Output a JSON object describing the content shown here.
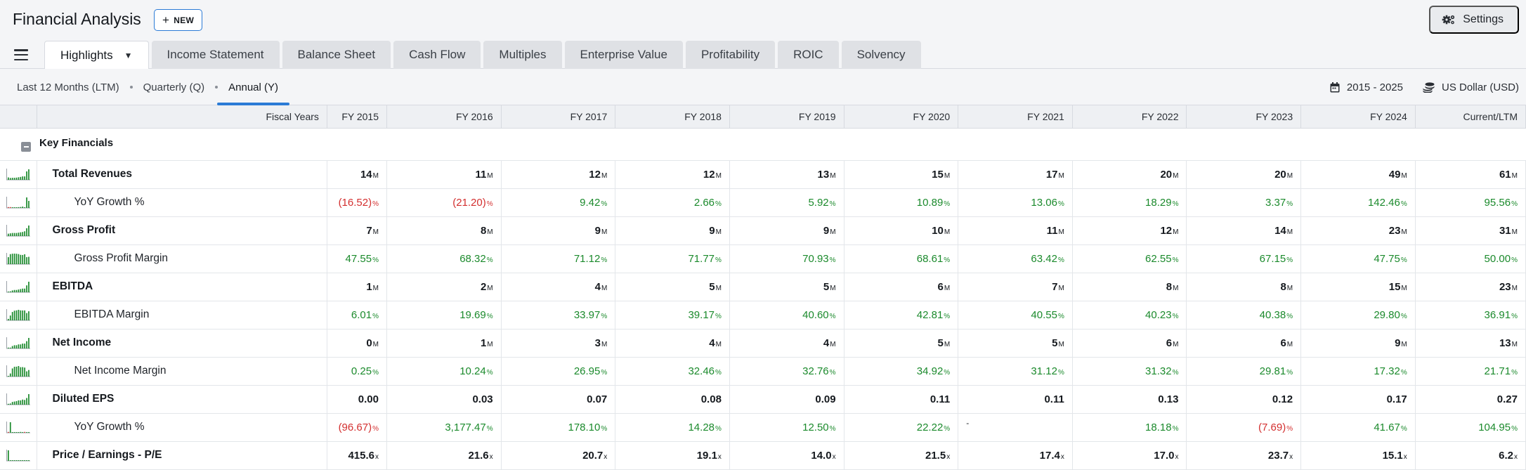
{
  "app": {
    "title": "Financial Analysis",
    "new_label": "NEW",
    "settings_label": "Settings"
  },
  "tabs": [
    "Highlights",
    "Income Statement",
    "Balance Sheet",
    "Cash Flow",
    "Multiples",
    "Enterprise Value",
    "Profitability",
    "ROIC",
    "Solvency"
  ],
  "periods": [
    "Last 12 Months (LTM)",
    "Quarterly (Q)",
    "Annual (Y)"
  ],
  "active_period": "Annual (Y)",
  "range_label": "2015 - 2025",
  "currency_label": "US Dollar (USD)",
  "colors": {
    "accent": "#2b7bd6",
    "positive": "#1b8a2c",
    "negative": "#d32f2f"
  },
  "table": {
    "header_label": "Fiscal Years",
    "columns": [
      "FY 2015",
      "FY 2016",
      "FY 2017",
      "FY 2018",
      "FY 2019",
      "FY 2020",
      "FY 2021",
      "FY 2022",
      "FY 2023",
      "FY 2024",
      "Current/LTM"
    ],
    "section": "Key Financials",
    "rows": [
      {
        "label": "Total Revenues",
        "sub": false,
        "unit": "M",
        "values": [
          "14",
          "11",
          "12",
          "12",
          "13",
          "15",
          "17",
          "20",
          "20",
          "49",
          "61"
        ],
        "spark": [
          14,
          11,
          12,
          12,
          13,
          15,
          17,
          20,
          20,
          49,
          61
        ]
      },
      {
        "label": "YoY Growth %",
        "sub": true,
        "unit": "%",
        "values": [
          "(16.52)",
          "(21.20)",
          "9.42",
          "2.66",
          "5.92",
          "10.89",
          "13.06",
          "18.29",
          "3.37",
          "142.46",
          "95.56"
        ],
        "spark": [
          -16.52,
          -21.2,
          9.42,
          2.66,
          5.92,
          10.89,
          13.06,
          18.29,
          3.37,
          142.46,
          95.56
        ]
      },
      {
        "label": "Gross Profit",
        "sub": false,
        "unit": "M",
        "values": [
          "7",
          "8",
          "9",
          "9",
          "9",
          "10",
          "11",
          "12",
          "14",
          "23",
          "31"
        ],
        "spark": [
          7,
          8,
          9,
          9,
          9,
          10,
          11,
          12,
          14,
          23,
          31
        ]
      },
      {
        "label": "Gross Profit Margin",
        "sub": true,
        "unit": "%",
        "values": [
          "47.55",
          "68.32",
          "71.12",
          "71.77",
          "70.93",
          "68.61",
          "63.42",
          "62.55",
          "67.15",
          "47.75",
          "50.00"
        ],
        "spark": [
          47.55,
          68.32,
          71.12,
          71.77,
          70.93,
          68.61,
          63.42,
          62.55,
          67.15,
          47.75,
          50
        ]
      },
      {
        "label": "EBITDA",
        "sub": false,
        "unit": "M",
        "values": [
          "1",
          "2",
          "4",
          "5",
          "5",
          "6",
          "7",
          "8",
          "8",
          "15",
          "23"
        ],
        "spark": [
          1,
          2,
          4,
          5,
          5,
          6,
          7,
          8,
          8,
          15,
          23
        ]
      },
      {
        "label": "EBITDA Margin",
        "sub": true,
        "unit": "%",
        "values": [
          "6.01",
          "19.69",
          "33.97",
          "39.17",
          "40.60",
          "42.81",
          "40.55",
          "40.23",
          "40.38",
          "29.80",
          "36.91"
        ],
        "spark": [
          6.01,
          19.69,
          33.97,
          39.17,
          40.6,
          42.81,
          40.55,
          40.23,
          40.38,
          29.8,
          36.91
        ]
      },
      {
        "label": "Net Income",
        "sub": false,
        "unit": "M",
        "values": [
          "0",
          "1",
          "3",
          "4",
          "4",
          "5",
          "5",
          "6",
          "6",
          "9",
          "13"
        ],
        "spark": [
          0,
          1,
          3,
          4,
          4,
          5,
          5,
          6,
          6,
          9,
          13
        ]
      },
      {
        "label": "Net Income Margin",
        "sub": true,
        "unit": "%",
        "values": [
          "0.25",
          "10.24",
          "26.95",
          "32.46",
          "32.76",
          "34.92",
          "31.12",
          "31.32",
          "29.81",
          "17.32",
          "21.71"
        ],
        "spark": [
          0.25,
          10.24,
          26.95,
          32.46,
          32.76,
          34.92,
          31.12,
          31.32,
          29.81,
          17.32,
          21.71
        ]
      },
      {
        "label": "Diluted EPS",
        "sub": false,
        "unit": "",
        "values": [
          "0.00",
          "0.03",
          "0.07",
          "0.08",
          "0.09",
          "0.11",
          "0.11",
          "0.13",
          "0.12",
          "0.17",
          "0.27"
        ],
        "spark": [
          0,
          0.03,
          0.07,
          0.08,
          0.09,
          0.11,
          0.11,
          0.13,
          0.12,
          0.17,
          0.27
        ]
      },
      {
        "label": "YoY Growth %",
        "sub": true,
        "unit": "%",
        "values": [
          "(96.67)",
          "3,177.47",
          "178.10",
          "14.28",
          "12.50",
          "22.22",
          "-",
          "18.18",
          "(7.69)",
          "41.67",
          "104.95"
        ],
        "spark": [
          -96.67,
          3177.47,
          178.1,
          14.28,
          12.5,
          22.22,
          0,
          18.18,
          -7.69,
          41.67,
          104.95
        ]
      },
      {
        "label": "Price / Earnings - P/E",
        "sub": false,
        "unit": "x",
        "values": [
          "415.6",
          "21.6",
          "20.7",
          "19.1",
          "14.0",
          "21.5",
          "17.4",
          "17.0",
          "23.7",
          "15.1",
          "6.2"
        ],
        "spark": [
          415.6,
          21.6,
          20.7,
          19.1,
          14,
          21.5,
          17.4,
          17,
          23.7,
          15.1,
          6.2
        ]
      }
    ]
  }
}
